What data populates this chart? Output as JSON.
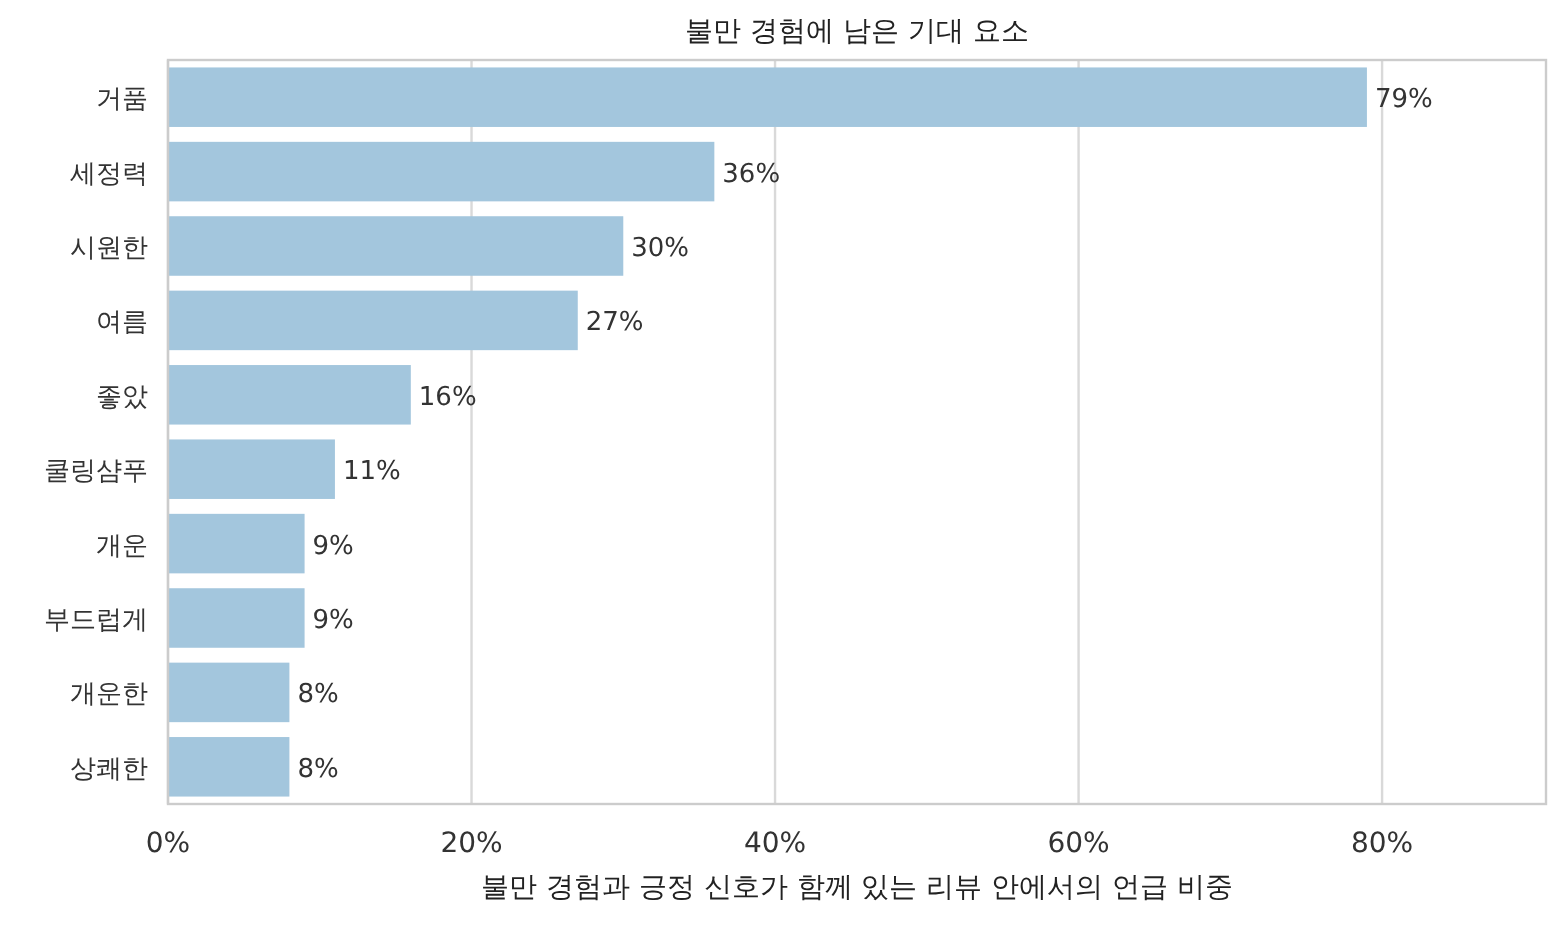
{
  "chart_data": {
    "type": "bar",
    "orientation": "horizontal",
    "title": "불만 경험에 남은 기대 요소",
    "xlabel": "불만 경험과 긍정 신호가 함께 있는 리뷰 안에서의 언급 비중",
    "categories": [
      "거품",
      "세정력",
      "시원한",
      "여름",
      "좋았",
      "쿨링샴푸",
      "개운",
      "부드럽게",
      "개운한",
      "상쾌한"
    ],
    "values": [
      79,
      36,
      30,
      27,
      16,
      11,
      9,
      9,
      8,
      8
    ],
    "value_labels": [
      "79%",
      "36%",
      "30%",
      "27%",
      "16%",
      "11%",
      "9%",
      "9%",
      "8%",
      "8%"
    ],
    "color": "#a3c6dd",
    "xlim": [
      0,
      90.8
    ],
    "xticks": [
      {
        "value": 0,
        "label": "0%"
      },
      {
        "value": 20,
        "label": "20%"
      },
      {
        "value": 40,
        "label": "40%"
      },
      {
        "value": 60,
        "label": "60%"
      },
      {
        "value": 80,
        "label": "80%"
      }
    ],
    "grid": "x"
  }
}
